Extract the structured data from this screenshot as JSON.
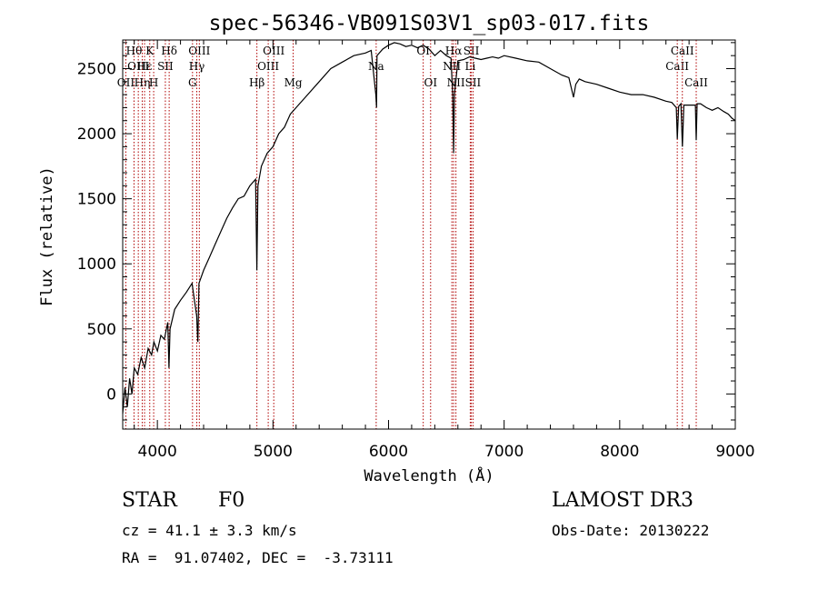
{
  "chart_data": {
    "type": "line",
    "title": "spec-56346-VB091S03V1_sp03-017.fits",
    "xlabel": "Wavelength (Å)",
    "ylabel": "Flux (relative)",
    "xlim": [
      3700,
      9000
    ],
    "ylim": [
      -270,
      2720
    ],
    "x_ticks": [
      4000,
      5000,
      6000,
      7000,
      8000,
      9000
    ],
    "y_ticks": [
      0,
      500,
      1000,
      1500,
      2000,
      2500
    ],
    "grid": false,
    "series": [
      {
        "color": "#000000",
        "x": [
          3700,
          3720,
          3740,
          3760,
          3780,
          3800,
          3830,
          3860,
          3890,
          3920,
          3950,
          3970,
          4000,
          4030,
          4060,
          4090,
          4100,
          4110,
          4150,
          4200,
          4250,
          4300,
          4340,
          4350,
          4360,
          4400,
          4450,
          4500,
          4550,
          4600,
          4650,
          4700,
          4750,
          4800,
          4850,
          4861,
          4870,
          4900,
          4950,
          5000,
          5050,
          5100,
          5150,
          5200,
          5300,
          5400,
          5500,
          5600,
          5700,
          5800,
          5850,
          5890,
          5896,
          5900,
          5950,
          6000,
          6050,
          6100,
          6150,
          6200,
          6250,
          6300,
          6350,
          6400,
          6450,
          6500,
          6540,
          6555,
          6563,
          6570,
          6600,
          6650,
          6700,
          6750,
          6800,
          6850,
          6900,
          6950,
          7000,
          7100,
          7200,
          7300,
          7400,
          7500,
          7560,
          7600,
          7620,
          7650,
          7700,
          7800,
          7900,
          8000,
          8100,
          8200,
          8300,
          8400,
          8450,
          8490,
          8498,
          8510,
          8530,
          8542,
          8555,
          8580,
          8620,
          8655,
          8662,
          8670,
          8700,
          8750,
          8800,
          8850,
          8900,
          8940,
          8970,
          9000
        ],
        "values": [
          -150,
          50,
          -100,
          120,
          0,
          200,
          150,
          280,
          200,
          350,
          300,
          400,
          330,
          450,
          420,
          550,
          200,
          500,
          650,
          720,
          780,
          850,
          600,
          400,
          850,
          950,
          1050,
          1150,
          1250,
          1350,
          1430,
          1500,
          1520,
          1600,
          1650,
          950,
          1600,
          1750,
          1850,
          1900,
          2000,
          2050,
          2150,
          2200,
          2300,
          2400,
          2500,
          2550,
          2600,
          2620,
          2640,
          2300,
          2200,
          2600,
          2650,
          2680,
          2700,
          2690,
          2670,
          2680,
          2660,
          2680,
          2650,
          2600,
          2640,
          2600,
          2580,
          2300,
          1850,
          2300,
          2560,
          2570,
          2590,
          2580,
          2570,
          2580,
          2590,
          2580,
          2600,
          2580,
          2560,
          2550,
          2500,
          2450,
          2430,
          2280,
          2380,
          2420,
          2400,
          2380,
          2350,
          2320,
          2300,
          2300,
          2280,
          2250,
          2240,
          2200,
          1960,
          2210,
          2230,
          1900,
          2220,
          2220,
          2220,
          2220,
          1950,
          2230,
          2230,
          2200,
          2180,
          2200,
          2170,
          2150,
          2120,
          2100
        ]
      }
    ],
    "line_markers": [
      {
        "wl": 3727,
        "label": "OII",
        "row": 2
      },
      {
        "wl": 3798,
        "label": "Hθ",
        "row": 0
      },
      {
        "wl": 3835,
        "label": "OIII",
        "row": 1
      },
      {
        "wl": 3869,
        "label": "Hη",
        "row": 2
      },
      {
        "wl": 3889,
        "label": "Hε",
        "row": 1
      },
      {
        "wl": 3934,
        "label": "K",
        "row": 0
      },
      {
        "wl": 3968,
        "label": "H",
        "row": 2
      },
      {
        "wl": 4069,
        "label": "SII",
        "row": 1
      },
      {
        "wl": 4102,
        "label": "Hδ",
        "row": 0
      },
      {
        "wl": 4304,
        "label": "G",
        "row": 2
      },
      {
        "wl": 4341,
        "label": "Hγ",
        "row": 1
      },
      {
        "wl": 4363,
        "label": "OIII",
        "row": 0
      },
      {
        "wl": 4861,
        "label": "Hβ",
        "row": 2
      },
      {
        "wl": 4959,
        "label": "OIII",
        "row": 1
      },
      {
        "wl": 5007,
        "label": "OIII",
        "row": 0
      },
      {
        "wl": 5175,
        "label": "Mg",
        "row": 2
      },
      {
        "wl": 5893,
        "label": "Na",
        "row": 1
      },
      {
        "wl": 6300,
        "label": "OI",
        "row": 0
      },
      {
        "wl": 6364,
        "label": "OI",
        "row": 2
      },
      {
        "wl": 6548,
        "label": "NII",
        "row": 1
      },
      {
        "wl": 6563,
        "label": "Hα",
        "row": 0
      },
      {
        "wl": 6583,
        "label": "NII",
        "row": 2
      },
      {
        "wl": 6707,
        "label": "Li",
        "row": 1
      },
      {
        "wl": 6716,
        "label": "SII",
        "row": 0
      },
      {
        "wl": 6731,
        "label": "SII",
        "row": 2
      },
      {
        "wl": 8498,
        "label": "CaII",
        "row": 1
      },
      {
        "wl": 8542,
        "label": "CaII",
        "row": 0
      },
      {
        "wl": 8662,
        "label": "CaII",
        "row": 2
      }
    ]
  },
  "info": {
    "object_class": "STAR",
    "subclass": "F0",
    "survey": "LAMOST DR3",
    "redshift": "cz = 41.1 ± 3.3 km/s",
    "obs_date": "Obs-Date: 20130222",
    "coords": "RA =  91.07402, DEC =  -3.73111"
  }
}
